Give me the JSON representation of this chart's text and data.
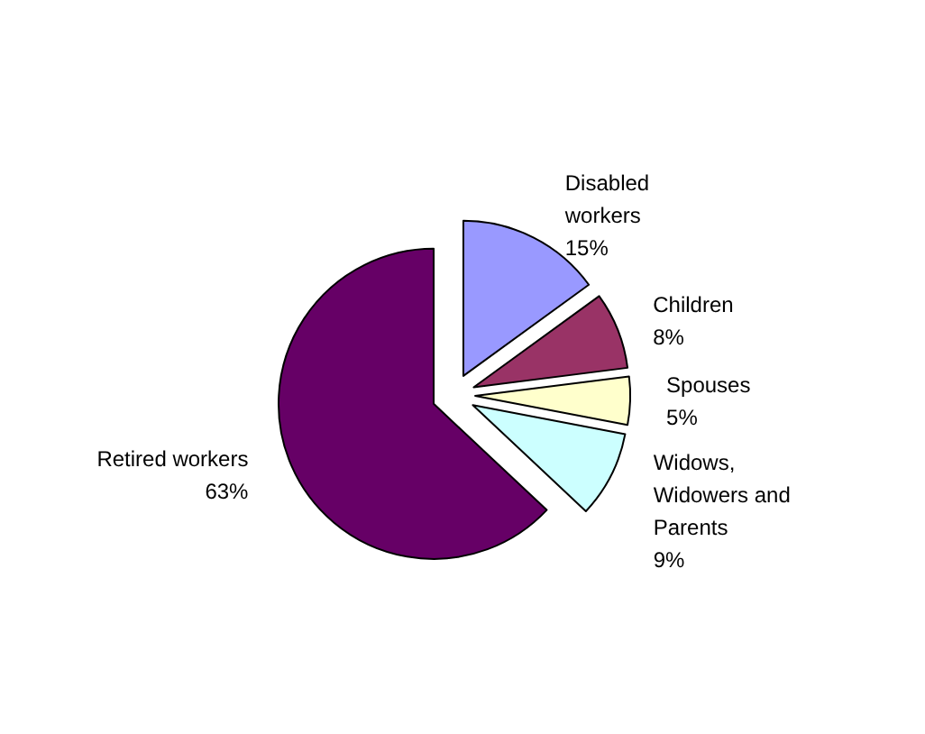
{
  "chart_data": {
    "type": "pie",
    "categories": [
      "Disabled workers",
      "Children",
      "Spouses",
      "Widows, Widowers and Parents",
      "Retired workers"
    ],
    "values": [
      15,
      8,
      5,
      9,
      63
    ],
    "colors": [
      "#9999ff",
      "#993366",
      "#ffffcc",
      "#ccffff",
      "#660066"
    ],
    "value_labels": [
      "15%",
      "8%",
      "5%",
      "9%",
      "63%"
    ],
    "legend": false
  }
}
